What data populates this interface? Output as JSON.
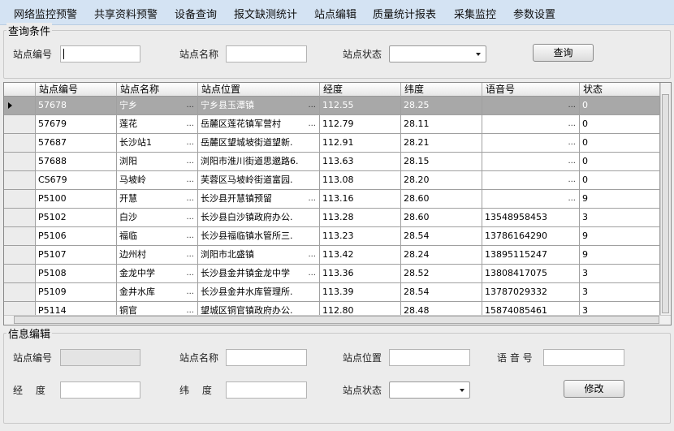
{
  "menu": [
    "网络监控预警",
    "共享资料预警",
    "设备查询",
    "报文缺测统计",
    "站点编辑",
    "质量统计报表",
    "采集监控",
    "参数设置"
  ],
  "query": {
    "title": "查询条件",
    "station_id": "站点编号",
    "station_name": "站点名称",
    "station_status": "站点状态",
    "button": "查询"
  },
  "grid": {
    "ellipsis": "...",
    "headers": [
      "站点编号",
      "站点名称",
      "站点位置",
      "经度",
      "纬度",
      "语音号",
      "状态"
    ],
    "rows": [
      [
        "57678",
        "宁乡",
        "宁乡县玉潭镇",
        "112.55",
        "28.25",
        "",
        "0"
      ],
      [
        "57679",
        "莲花",
        "岳麓区莲花镇军营村",
        "112.79",
        "28.11",
        "",
        "0"
      ],
      [
        "57687",
        "长沙站1",
        "岳麓区望城坡街道望新.",
        "112.91",
        "28.21",
        "",
        "0"
      ],
      [
        "57688",
        "浏阳",
        "浏阳市淮川街道思邈路6.",
        "113.63",
        "28.15",
        "",
        "0"
      ],
      [
        "CS679",
        "马坡岭",
        "芙蓉区马坡岭街道富园.",
        "113.08",
        "28.20",
        "",
        "0"
      ],
      [
        "P5100",
        "开慧",
        "长沙县开慧镇预留",
        "113.16",
        "28.60",
        "",
        "9"
      ],
      [
        "P5102",
        "白沙",
        "长沙县白沙镇政府办公.",
        "113.28",
        "28.60",
        "13548958453",
        "3"
      ],
      [
        "P5106",
        "福临",
        "长沙县福临镇水管所三.",
        "113.23",
        "28.54",
        "13786164290",
        "9"
      ],
      [
        "P5107",
        "边州村",
        "浏阳市北盛镇",
        "113.42",
        "28.24",
        "13895115247",
        "9"
      ],
      [
        "P5108",
        "金龙中学",
        "长沙县金井镇金龙中学",
        "113.36",
        "28.52",
        "13808417075",
        "3"
      ],
      [
        "P5109",
        "金井水库",
        "长沙县金井水库管理所.",
        "113.39",
        "28.54",
        "13787029332",
        "3"
      ],
      [
        "P5114",
        "铜官",
        "望城区铜官镇政府办公.",
        "112.80",
        "28.48",
        "15874085461",
        "3"
      ]
    ]
  },
  "edit": {
    "title": "信息编辑",
    "station_id": "站点编号",
    "station_name": "站点名称",
    "station_location": "站点位置",
    "voice": "语 音 号",
    "longitude": "经　 度",
    "latitude": "纬　 度",
    "station_status": "站点状态",
    "button": "修改"
  }
}
